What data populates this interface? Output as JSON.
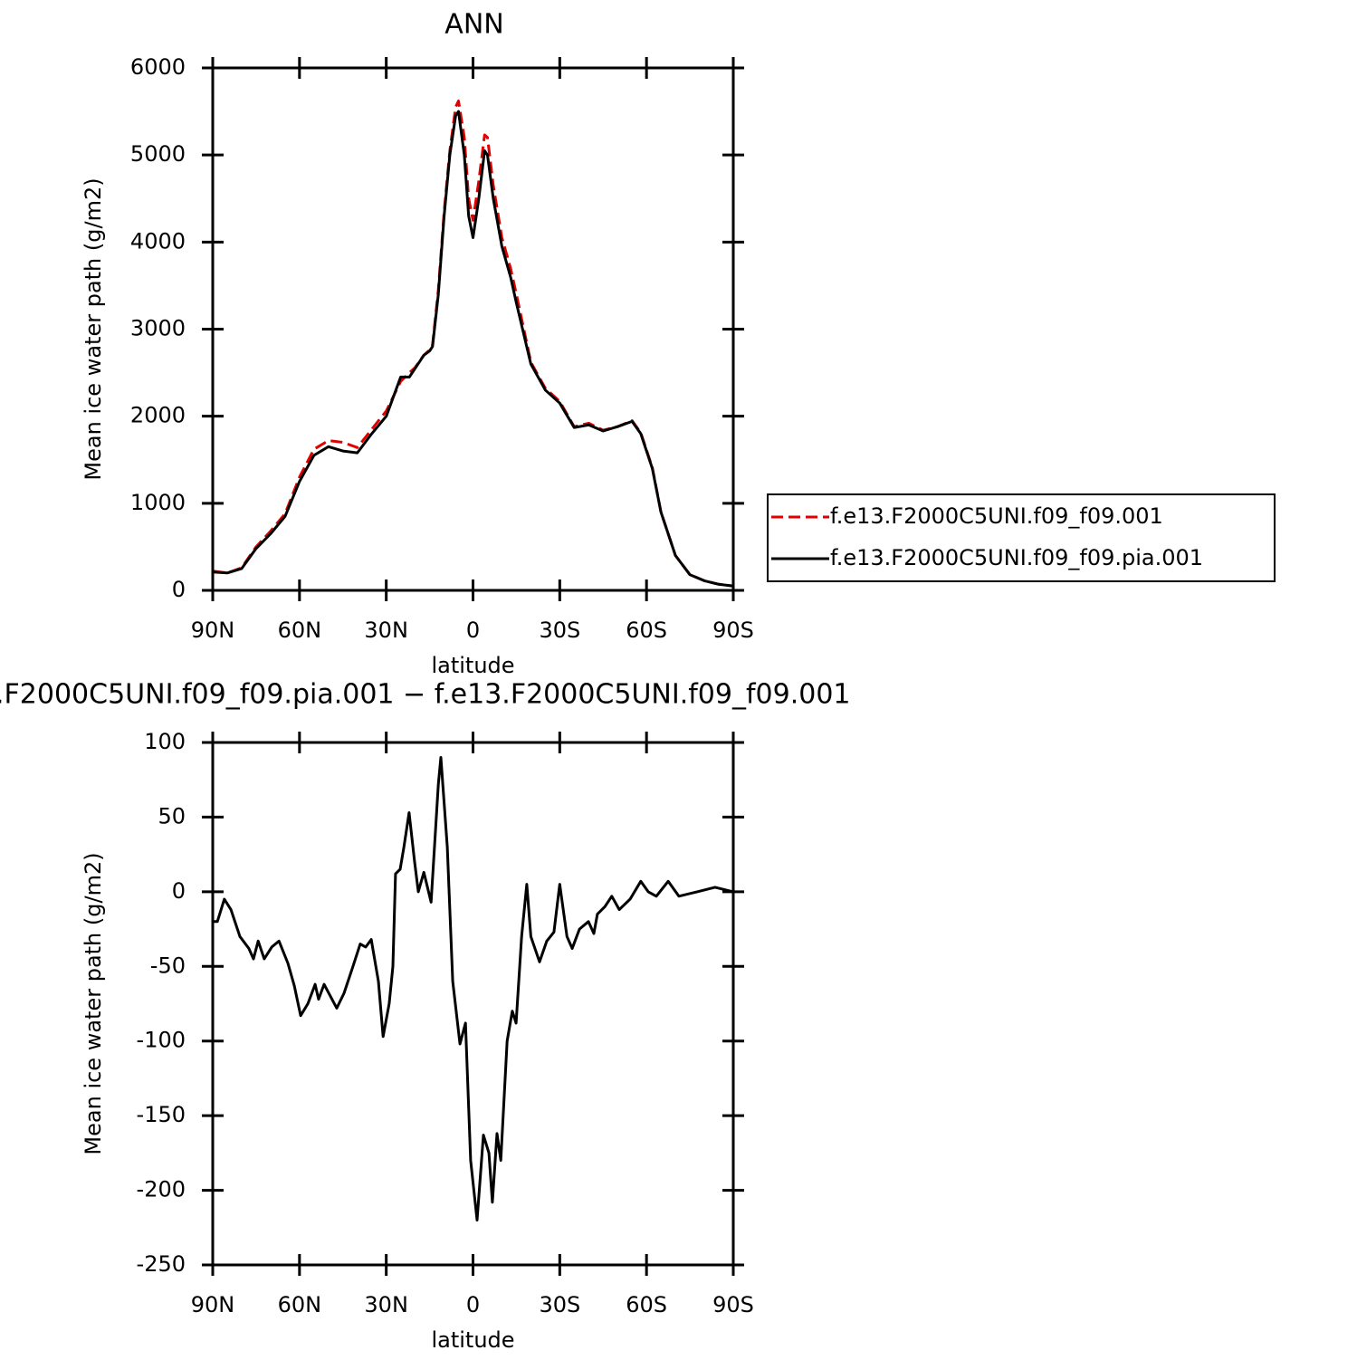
{
  "chart_data": [
    {
      "type": "line",
      "title": "ANN",
      "xlabel": "latitude",
      "ylabel": "Mean ice water path (g/m2)",
      "x": [
        90,
        85,
        80,
        75,
        70,
        65,
        60,
        55,
        50,
        45,
        40,
        35,
        30,
        25,
        22,
        20,
        17,
        15,
        14,
        12,
        10,
        8,
        6,
        5,
        3,
        1.5,
        0,
        -2,
        -4,
        -5,
        -7,
        -10,
        -13,
        -15,
        -20,
        -25,
        -30,
        -35,
        -40,
        -45,
        -50,
        -55,
        -58,
        -62,
        -65,
        -70,
        -75,
        -80,
        -85,
        -90
      ],
      "series": [
        {
          "name": "f.e13.F2000C5UNI.f09_f09.001",
          "color": "#e00000",
          "dash": true,
          "values": [
            220,
            200,
            260,
            500,
            680,
            880,
            1300,
            1620,
            1720,
            1700,
            1640,
            1850,
            2060,
            2400,
            2500,
            2560,
            2700,
            2760,
            2820,
            3450,
            4350,
            5050,
            5550,
            5620,
            5200,
            4500,
            4250,
            4700,
            5230,
            5200,
            4650,
            4050,
            3700,
            3400,
            2620,
            2320,
            2170,
            1880,
            1920,
            1840,
            1880,
            1950,
            1810,
            1410,
            900,
            400,
            180,
            110,
            70,
            50
          ]
        },
        {
          "name": "f.e13.F2000C5UNI.f09_f09.pia.001",
          "color": "#000000",
          "dash": false,
          "values": [
            210,
            200,
            250,
            480,
            650,
            850,
            1250,
            1550,
            1650,
            1600,
            1580,
            1800,
            2000,
            2450,
            2450,
            2550,
            2700,
            2750,
            2800,
            3400,
            4300,
            5000,
            5450,
            5500,
            5000,
            4300,
            4050,
            4500,
            5050,
            5000,
            4500,
            3950,
            3600,
            3300,
            2600,
            2300,
            2150,
            1870,
            1900,
            1830,
            1880,
            1940,
            1800,
            1400,
            900,
            400,
            180,
            110,
            70,
            50
          ]
        }
      ],
      "xlim": [
        90,
        -90
      ],
      "xticks": [
        {
          "value": 90,
          "label": "90N"
        },
        {
          "value": 60,
          "label": "60N"
        },
        {
          "value": 30,
          "label": "30N"
        },
        0,
        {
          "value": -30,
          "label": "30S"
        },
        {
          "value": -60,
          "label": "60S"
        },
        {
          "value": -90,
          "label": "90S"
        }
      ],
      "ylim": [
        0,
        6000
      ],
      "yticks": [
        0,
        1000,
        2000,
        3000,
        4000,
        5000,
        6000
      ],
      "legend": "right"
    },
    {
      "type": "line",
      "title": ".F2000C5UNI.f09_f09.pia.001 − f.e13.F2000C5UNI.f09_f09.001",
      "xlabel": "latitude",
      "ylabel": "Mean ice water path (g/m2)",
      "x": [
        90,
        88.4,
        86,
        83.7,
        80.6,
        77.5,
        75.9,
        74.3,
        72.2,
        69.6,
        67.1,
        64,
        61.8,
        59.6,
        57.1,
        54.6,
        53.4,
        51.5,
        49.3,
        47.1,
        44.6,
        41.5,
        39,
        37.1,
        35.2,
        32.7,
        31.1,
        29,
        27.7,
        26.8,
        25.2,
        23.9,
        22.1,
        20.2,
        18.9,
        17,
        14.5,
        12,
        11.1,
        8.9,
        7,
        4.5,
        2.6,
        0.8,
        -1.4,
        -3.6,
        -5.5,
        -6.7,
        -8.3,
        -9.6,
        -11.8,
        -13.6,
        -14.9,
        -16.8,
        -18.6,
        -20,
        -23,
        -25.5,
        -28,
        -30,
        -32.5,
        -34.3,
        -36.8,
        -39.9,
        -41.8,
        -43,
        -45.6,
        -48,
        -50.6,
        -54.3,
        -58,
        -60.6,
        -63.4,
        -67.5,
        -71.2,
        -77.5,
        -83.7,
        -90
      ],
      "series": [
        {
          "color": "#000000",
          "dash": false,
          "values": [
            -20,
            -20,
            -5,
            -12,
            -30,
            -38,
            -45,
            -33,
            -45,
            -37,
            -33,
            -48,
            -63,
            -83,
            -75,
            -62,
            -72,
            -62,
            -70,
            -78,
            -68,
            -50,
            -35,
            -37,
            -32,
            -60,
            -97,
            -75,
            -50,
            12,
            15,
            30,
            53,
            20,
            0,
            13,
            -7,
            72,
            90,
            30,
            -60,
            -102,
            -88,
            -180,
            -220,
            -163,
            -175,
            -208,
            -162,
            -180,
            -100,
            -80,
            -88,
            -30,
            5,
            -30,
            -47,
            -33,
            -27,
            5,
            -30,
            -38,
            -25,
            -20,
            -28,
            -15,
            -10,
            -3,
            -12,
            -5,
            7,
            0,
            -3,
            7,
            -3,
            0,
            3,
            0
          ]
        }
      ],
      "xlim": [
        90,
        -90
      ],
      "xticks": [
        {
          "value": 90,
          "label": "90N"
        },
        {
          "value": 60,
          "label": "60N"
        },
        {
          "value": 30,
          "label": "30N"
        },
        0,
        {
          "value": -30,
          "label": "30S"
        },
        {
          "value": -60,
          "label": "60S"
        },
        {
          "value": -90,
          "label": "90S"
        }
      ],
      "ylim": [
        -250,
        100
      ],
      "yticks": [
        -250,
        -200,
        -150,
        -100,
        -50,
        0,
        50,
        100
      ]
    }
  ]
}
